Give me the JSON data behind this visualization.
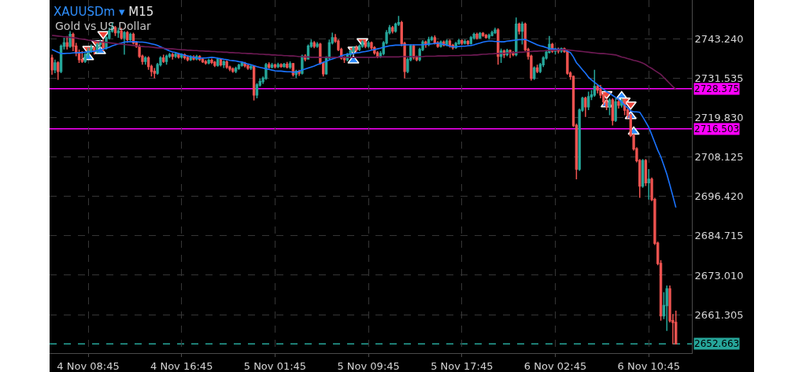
{
  "chart_data": {
    "type": "candlestick",
    "title": "XAUUSDm ▾ M15",
    "subtitle": "Gold vs US Dollar",
    "categories": [
      null,
      null,
      null,
      null,
      null,
      null,
      null,
      null,
      null,
      null,
      null,
      null,
      "4 Nov 08:45",
      null,
      null,
      null,
      null,
      null,
      null,
      null,
      null,
      null,
      null,
      null,
      null,
      null,
      null,
      null,
      null,
      null,
      null,
      null,
      null,
      null,
      null,
      null,
      null,
      null,
      null,
      null,
      null,
      null,
      null,
      "4 Nov 16:45",
      null,
      null,
      null,
      null,
      null,
      null,
      null,
      null,
      null,
      null,
      null,
      null,
      null,
      null,
      null,
      null,
      null,
      null,
      null,
      null,
      null,
      null,
      null,
      null,
      null,
      null,
      null,
      null,
      null,
      null,
      "5 Nov 01:45",
      null,
      null,
      null,
      null,
      null,
      null,
      null,
      null,
      null,
      null,
      null,
      null,
      null,
      null,
      null,
      null,
      null,
      null,
      null,
      null,
      null,
      null,
      null,
      null,
      null,
      null,
      null,
      null,
      null,
      null,
      "5 Nov 09:45",
      null,
      null,
      null,
      null,
      null,
      null,
      null,
      null,
      null,
      null,
      null,
      null,
      null,
      null,
      null,
      null,
      null,
      null,
      null,
      null,
      null,
      null,
      null,
      null,
      null,
      null,
      null,
      null,
      null,
      null,
      "5 Nov 17:45",
      null,
      null,
      null,
      null,
      null,
      null,
      null,
      null,
      null,
      null,
      null,
      null,
      null,
      null,
      null,
      null,
      null,
      null,
      null,
      null,
      null,
      null,
      null,
      null,
      null,
      null,
      null,
      null,
      null,
      null,
      "6 Nov 02:45",
      null,
      null,
      null,
      null,
      null,
      null,
      null,
      null,
      null,
      null,
      null,
      null,
      null,
      null,
      null,
      null,
      null,
      null,
      null,
      null,
      null,
      null,
      null,
      null,
      null,
      null,
      null,
      null,
      null,
      null,
      "6 Nov 10:45",
      null,
      null,
      null,
      null,
      null,
      null,
      null,
      null,
      null
    ],
    "ohlc": [
      [
        2737.5,
        2738.5,
        2732.5,
        2734.0
      ],
      [
        2734.0,
        2737.0,
        2733.0,
        2736.0
      ],
      [
        2736.0,
        2736.5,
        2731.0,
        2733.5
      ],
      [
        2733.5,
        2741.5,
        2733.0,
        2741.0
      ],
      [
        2741.0,
        2743.5,
        2740.0,
        2742.0
      ],
      [
        2742.0,
        2744.0,
        2740.0,
        2741.0
      ],
      [
        2741.0,
        2745.5,
        2740.5,
        2744.5
      ],
      [
        2744.5,
        2745.0,
        2739.5,
        2741.0
      ],
      [
        2741.0,
        2742.0,
        2738.0,
        2739.0
      ],
      [
        2739.0,
        2740.0,
        2736.0,
        2737.0
      ],
      [
        2737.0,
        2739.5,
        2736.0,
        2736.5
      ],
      [
        2736.5,
        2739.0,
        2736.0,
        2738.5
      ],
      [
        2738.5,
        2740.5,
        2737.5,
        2739.5
      ],
      [
        2739.5,
        2741.5,
        2739.0,
        2740.5
      ],
      [
        2740.5,
        2741.0,
        2738.5,
        2739.5
      ],
      [
        2739.5,
        2742.0,
        2739.0,
        2741.5
      ],
      [
        2741.5,
        2743.0,
        2740.5,
        2742.0
      ],
      [
        2742.0,
        2743.0,
        2739.5,
        2740.5
      ],
      [
        2740.5,
        2744.0,
        2740.0,
        2743.5
      ],
      [
        2743.5,
        2746.5,
        2743.0,
        2745.5
      ],
      [
        2745.5,
        2748.0,
        2745.0,
        2746.5
      ],
      [
        2746.5,
        2747.0,
        2744.0,
        2745.0
      ],
      [
        2745.0,
        2746.5,
        2743.5,
        2745.5
      ],
      [
        2745.5,
        2746.5,
        2743.0,
        2743.5
      ],
      [
        2743.5,
        2745.5,
        2738.5,
        2745.0
      ],
      [
        2745.0,
        2745.5,
        2742.0,
        2743.0
      ],
      [
        2743.0,
        2745.0,
        2742.5,
        2744.5
      ],
      [
        2744.5,
        2745.0,
        2741.5,
        2742.0
      ],
      [
        2742.0,
        2742.5,
        2740.5,
        2741.0
      ],
      [
        2741.0,
        2741.5,
        2737.5,
        2738.0
      ],
      [
        2738.0,
        2738.5,
        2735.5,
        2736.5
      ],
      [
        2736.5,
        2738.0,
        2735.5,
        2737.5
      ],
      [
        2737.5,
        2738.0,
        2734.0,
        2735.0
      ],
      [
        2735.0,
        2735.5,
        2732.0,
        2733.5
      ],
      [
        2733.5,
        2734.5,
        2731.5,
        2733.0
      ],
      [
        2733.0,
        2736.0,
        2732.5,
        2735.5
      ],
      [
        2735.5,
        2738.0,
        2735.0,
        2737.5
      ],
      [
        2737.5,
        2738.5,
        2736.0,
        2736.5
      ],
      [
        2736.5,
        2738.5,
        2735.5,
        2738.0
      ],
      [
        2738.0,
        2739.0,
        2737.5,
        2738.5
      ],
      [
        2738.5,
        2739.0,
        2737.0,
        2738.0
      ],
      [
        2738.0,
        2739.2,
        2737.5,
        2738.6
      ],
      [
        2738.6,
        2739.0,
        2737.3,
        2737.8
      ],
      [
        2737.8,
        2738.9,
        2737.3,
        2738.4
      ],
      [
        2738.4,
        2738.8,
        2737.0,
        2737.6
      ],
      [
        2737.6,
        2738.0,
        2736.5,
        2737.0
      ],
      [
        2737.0,
        2738.3,
        2736.6,
        2737.8
      ],
      [
        2737.8,
        2738.3,
        2736.8,
        2737.2
      ],
      [
        2737.2,
        2738.4,
        2736.8,
        2737.9
      ],
      [
        2737.9,
        2738.3,
        2736.6,
        2737.1
      ],
      [
        2737.1,
        2737.5,
        2736.0,
        2736.4
      ],
      [
        2736.4,
        2736.9,
        2735.5,
        2736.0
      ],
      [
        2736.0,
        2737.3,
        2735.6,
        2736.8
      ],
      [
        2736.8,
        2737.3,
        2735.7,
        2736.2
      ],
      [
        2736.2,
        2736.6,
        2734.8,
        2735.3
      ],
      [
        2735.3,
        2737.6,
        2734.9,
        2737.0
      ],
      [
        2737.0,
        2737.4,
        2735.0,
        2735.5
      ],
      [
        2735.5,
        2736.8,
        2734.5,
        2736.3
      ],
      [
        2736.3,
        2736.7,
        2734.3,
        2734.8
      ],
      [
        2734.8,
        2735.2,
        2733.6,
        2734.2
      ],
      [
        2734.2,
        2734.7,
        2733.1,
        2733.6
      ],
      [
        2733.6,
        2734.9,
        2733.0,
        2734.4
      ],
      [
        2734.4,
        2735.8,
        2734.0,
        2735.3
      ],
      [
        2735.3,
        2736.5,
        2734.9,
        2735.9
      ],
      [
        2735.9,
        2736.3,
        2734.7,
        2735.2
      ],
      [
        2735.2,
        2735.6,
        2734.0,
        2734.5
      ],
      [
        2734.5,
        2735.5,
        2733.9,
        2735.0
      ],
      [
        2735.0,
        2735.3,
        2724.9,
        2726.5
      ],
      [
        2726.5,
        2730.0,
        2725.5,
        2729.5
      ],
      [
        2729.5,
        2731.5,
        2729.0,
        2730.5
      ],
      [
        2730.5,
        2732.0,
        2729.8,
        2731.5
      ],
      [
        2731.5,
        2736.0,
        2731.0,
        2735.5
      ],
      [
        2735.5,
        2736.2,
        2734.3,
        2734.8
      ],
      [
        2734.8,
        2736.0,
        2734.4,
        2735.4
      ],
      [
        2735.4,
        2735.8,
        2734.4,
        2734.9
      ],
      [
        2734.9,
        2736.1,
        2734.5,
        2735.5
      ],
      [
        2735.5,
        2735.9,
        2734.6,
        2735.0
      ],
      [
        2735.0,
        2736.0,
        2734.6,
        2735.6
      ],
      [
        2735.6,
        2736.3,
        2734.4,
        2734.8
      ],
      [
        2734.8,
        2736.5,
        2734.2,
        2735.8
      ],
      [
        2735.8,
        2736.0,
        2732.0,
        2732.6
      ],
      [
        2732.6,
        2734.0,
        2731.6,
        2733.5
      ],
      [
        2733.5,
        2734.0,
        2732.2,
        2733.0
      ],
      [
        2733.0,
        2738.5,
        2732.6,
        2738.0
      ],
      [
        2738.0,
        2738.6,
        2736.5,
        2737.2
      ],
      [
        2737.2,
        2741.5,
        2737.0,
        2741.0
      ],
      [
        2741.0,
        2743.0,
        2740.5,
        2742.0
      ],
      [
        2742.0,
        2742.5,
        2740.4,
        2741.0
      ],
      [
        2741.0,
        2742.2,
        2740.5,
        2741.6
      ],
      [
        2741.6,
        2742.0,
        2735.5,
        2736.0
      ],
      [
        2736.0,
        2736.4,
        2732.0,
        2732.8
      ],
      [
        2732.8,
        2738.0,
        2732.5,
        2737.5
      ],
      [
        2737.5,
        2743.0,
        2737.0,
        2742.0
      ],
      [
        2742.0,
        2745.0,
        2741.5,
        2743.5
      ],
      [
        2743.5,
        2744.6,
        2742.0,
        2742.5
      ],
      [
        2742.5,
        2743.0,
        2739.5,
        2740.0
      ],
      [
        2740.0,
        2740.5,
        2737.0,
        2737.5
      ],
      [
        2737.5,
        2738.0,
        2736.0,
        2737.0
      ],
      [
        2737.0,
        2739.0,
        2736.5,
        2738.5
      ],
      [
        2738.5,
        2740.0,
        2737.5,
        2739.5
      ],
      [
        2739.5,
        2741.0,
        2739.0,
        2740.5
      ],
      [
        2740.5,
        2741.2,
        2739.2,
        2740.0
      ],
      [
        2740.0,
        2741.5,
        2739.5,
        2741.0
      ],
      [
        2741.0,
        2742.8,
        2740.5,
        2742.2
      ],
      [
        2742.2,
        2742.6,
        2740.4,
        2741.0
      ],
      [
        2741.0,
        2742.6,
        2740.5,
        2742.0
      ],
      [
        2742.0,
        2742.4,
        2740.0,
        2740.5
      ],
      [
        2740.5,
        2741.0,
        2738.5,
        2739.0
      ],
      [
        2739.0,
        2739.5,
        2737.4,
        2738.0
      ],
      [
        2738.0,
        2739.5,
        2737.5,
        2738.8
      ],
      [
        2738.8,
        2742.5,
        2738.3,
        2742.0
      ],
      [
        2742.0,
        2745.8,
        2741.5,
        2745.0
      ],
      [
        2745.0,
        2747.3,
        2744.5,
        2746.5
      ],
      [
        2746.5,
        2747.0,
        2744.8,
        2745.5
      ],
      [
        2745.5,
        2748.0,
        2745.0,
        2747.5
      ],
      [
        2747.5,
        2750.0,
        2747.0,
        2748.0
      ],
      [
        2748.0,
        2748.5,
        2741.0,
        2741.8
      ],
      [
        2741.8,
        2742.3,
        2731.5,
        2733.5
      ],
      [
        2733.5,
        2737.6,
        2733.0,
        2737.0
      ],
      [
        2737.0,
        2741.5,
        2736.5,
        2741.0
      ],
      [
        2741.0,
        2741.5,
        2737.0,
        2737.7
      ],
      [
        2737.7,
        2738.2,
        2736.5,
        2737.0
      ],
      [
        2737.0,
        2740.5,
        2736.5,
        2740.0
      ],
      [
        2740.0,
        2742.8,
        2739.5,
        2742.2
      ],
      [
        2742.2,
        2742.6,
        2740.5,
        2741.5
      ],
      [
        2741.5,
        2743.8,
        2741.0,
        2743.0
      ],
      [
        2743.0,
        2744.0,
        2742.5,
        2743.5
      ],
      [
        2743.5,
        2744.2,
        2741.5,
        2742.0
      ],
      [
        2742.0,
        2742.5,
        2740.5,
        2741.0
      ],
      [
        2741.0,
        2742.7,
        2740.6,
        2742.2
      ],
      [
        2742.2,
        2742.7,
        2740.9,
        2741.4
      ],
      [
        2741.4,
        2743.0,
        2741.0,
        2742.5
      ],
      [
        2742.5,
        2743.0,
        2740.6,
        2741.2
      ],
      [
        2741.2,
        2741.7,
        2740.0,
        2740.6
      ],
      [
        2740.6,
        2742.3,
        2740.2,
        2741.8
      ],
      [
        2741.8,
        2743.2,
        2741.4,
        2742.6
      ],
      [
        2742.6,
        2743.0,
        2741.4,
        2741.9
      ],
      [
        2741.9,
        2743.0,
        2741.5,
        2742.4
      ],
      [
        2742.4,
        2742.8,
        2741.3,
        2741.8
      ],
      [
        2741.8,
        2744.0,
        2741.5,
        2743.5
      ],
      [
        2743.5,
        2745.0,
        2743.0,
        2744.5
      ],
      [
        2744.5,
        2745.0,
        2743.0,
        2743.5
      ],
      [
        2743.5,
        2745.2,
        2743.2,
        2744.8
      ],
      [
        2744.8,
        2745.2,
        2743.8,
        2744.2
      ],
      [
        2744.2,
        2744.6,
        2743.2,
        2743.6
      ],
      [
        2743.6,
        2744.7,
        2743.0,
        2744.2
      ],
      [
        2744.2,
        2745.6,
        2743.9,
        2745.0
      ],
      [
        2745.0,
        2746.5,
        2744.6,
        2745.8
      ],
      [
        2745.8,
        2746.3,
        2735.5,
        2738.0
      ],
      [
        2738.0,
        2740.3,
        2736.0,
        2739.5
      ],
      [
        2739.5,
        2740.0,
        2737.5,
        2738.5
      ],
      [
        2738.5,
        2740.2,
        2738.0,
        2739.7
      ],
      [
        2739.7,
        2740.0,
        2737.5,
        2739.0
      ],
      [
        2739.0,
        2739.5,
        2738.0,
        2738.5
      ],
      [
        2738.5,
        2749.5,
        2738.0,
        2747.5
      ],
      [
        2747.5,
        2748.0,
        2744.5,
        2745.5
      ],
      [
        2745.5,
        2748.3,
        2741.5,
        2747.5
      ],
      [
        2747.5,
        2748.0,
        2739.5,
        2740.0
      ],
      [
        2740.0,
        2740.5,
        2737.0,
        2738.0
      ],
      [
        2738.0,
        2738.5,
        2730.8,
        2731.5
      ],
      [
        2731.5,
        2735.0,
        2731.0,
        2734.5
      ],
      [
        2734.5,
        2735.5,
        2733.0,
        2733.5
      ],
      [
        2733.5,
        2736.0,
        2733.0,
        2735.5
      ],
      [
        2735.5,
        2738.0,
        2734.8,
        2737.5
      ],
      [
        2737.5,
        2739.8,
        2737.0,
        2739.2
      ],
      [
        2739.2,
        2744.0,
        2738.8,
        2741.5
      ],
      [
        2741.5,
        2742.0,
        2739.0,
        2739.5
      ],
      [
        2739.5,
        2740.5,
        2738.5,
        2740.0
      ],
      [
        2740.0,
        2740.6,
        2738.8,
        2739.6
      ],
      [
        2739.6,
        2740.6,
        2739.0,
        2740.2
      ],
      [
        2740.2,
        2740.6,
        2739.0,
        2739.4
      ],
      [
        2739.4,
        2740.0,
        2732.5,
        2733.0
      ],
      [
        2733.0,
        2733.5,
        2731.0,
        2732.0
      ],
      [
        2732.0,
        2732.3,
        2717.0,
        2717.5
      ],
      [
        2717.5,
        2718.0,
        2701.5,
        2704.5
      ],
      [
        2704.5,
        2722.5,
        2704.0,
        2722.0
      ],
      [
        2722.0,
        2726.0,
        2721.5,
        2725.5
      ],
      [
        2725.5,
        2726.0,
        2720.0,
        2723.0
      ],
      [
        2723.0,
        2727.5,
        2722.0,
        2726.0
      ],
      [
        2726.0,
        2728.0,
        2725.0,
        2726.5
      ],
      [
        2726.5,
        2734.0,
        2726.0,
        2729.0
      ],
      [
        2729.0,
        2729.5,
        2727.0,
        2728.0
      ],
      [
        2728.0,
        2729.5,
        2725.5,
        2726.5
      ],
      [
        2726.5,
        2727.0,
        2723.5,
        2724.5
      ],
      [
        2724.5,
        2725.5,
        2722.0,
        2723.0
      ],
      [
        2723.0,
        2725.5,
        2720.5,
        2725.0
      ],
      [
        2725.0,
        2725.5,
        2717.5,
        2719.0
      ],
      [
        2719.0,
        2725.5,
        2718.5,
        2724.5
      ],
      [
        2724.5,
        2725.5,
        2722.5,
        2723.5
      ],
      [
        2723.5,
        2725.5,
        2722.8,
        2724.8
      ],
      [
        2724.8,
        2725.2,
        2720.5,
        2722.0
      ],
      [
        2722.0,
        2722.5,
        2719.5,
        2720.5
      ],
      [
        2720.5,
        2721.0,
        2714.0,
        2714.5
      ],
      [
        2714.5,
        2715.0,
        2710.0,
        2710.5
      ],
      [
        2710.5,
        2711.0,
        2706.5,
        2707.0
      ],
      [
        2707.0,
        2707.5,
        2696.0,
        2699.5
      ],
      [
        2699.5,
        2707.5,
        2699.0,
        2707.0
      ],
      [
        2707.0,
        2707.5,
        2699.5,
        2700.5
      ],
      [
        2700.5,
        2704.5,
        2695.5,
        2701.5
      ],
      [
        2701.5,
        2702.0,
        2695.0,
        2695.5
      ],
      [
        2695.5,
        2696.0,
        2682.0,
        2682.5
      ],
      [
        2682.5,
        2683.0,
        2676.0,
        2676.5
      ],
      [
        2676.5,
        2677.5,
        2659.5,
        2661.0
      ],
      [
        2661.0,
        2668.0,
        2660.0,
        2664.0
      ],
      [
        2664.0,
        2670.0,
        2656.5,
        2669.0
      ],
      [
        2669.0,
        2670.0,
        2659.0,
        2659.5
      ],
      [
        2659.5,
        2661.5,
        2652.5,
        2659.0
      ],
      [
        2659.0,
        2662.5,
        2652.663,
        2652.663
      ]
    ],
    "colors": [
      "#ef5350",
      "#26a69a",
      "#ef5350",
      "#26a69a",
      "#26a69a",
      "#ef5350",
      "#26a69a",
      "#ef5350",
      "#ef5350",
      "#ef5350",
      "#ef5350",
      "#26a69a",
      "#26a69a",
      "#26a69a",
      "#ef5350",
      "#26a69a",
      "#26a69a",
      "#ef5350",
      "#26a69a",
      "#26a69a",
      "#26a69a",
      "#ef5350",
      "#26a69a",
      "#ef5350",
      "#26a69a",
      "#ef5350",
      "#26a69a",
      "#ef5350",
      "#ef5350",
      "#ef5350",
      "#ef5350",
      "#26a69a",
      "#ef5350",
      "#ef5350",
      "#ef5350",
      "#26a69a",
      "#26a69a",
      "#ef5350",
      "#26a69a",
      "#26a69a",
      "#ef5350",
      "#26a69a",
      "#ef5350",
      "#26a69a",
      "#ef5350",
      "#ef5350",
      "#26a69a",
      "#ef5350",
      "#26a69a",
      "#ef5350",
      "#ef5350",
      "#ef5350",
      "#26a69a",
      "#ef5350",
      "#ef5350",
      "#26a69a",
      "#ef5350",
      "#26a69a",
      "#ef5350",
      "#ef5350",
      "#ef5350",
      "#26a69a",
      "#26a69a",
      "#26a69a",
      "#ef5350",
      "#ef5350",
      "#26a69a",
      "#ef5350",
      "#26a69a",
      "#26a69a",
      "#26a69a",
      "#26a69a",
      "#ef5350",
      "#26a69a",
      "#ef5350",
      "#26a69a",
      "#ef5350",
      "#26a69a",
      "#ef5350",
      "#26a69a",
      "#ef5350",
      "#26a69a",
      "#ef5350",
      "#26a69a",
      "#ef5350",
      "#26a69a",
      "#26a69a",
      "#ef5350",
      "#26a69a",
      "#ef5350",
      "#ef5350",
      "#26a69a",
      "#26a69a",
      "#26a69a",
      "#ef5350",
      "#ef5350",
      "#ef5350",
      "#ef5350",
      "#26a69a",
      "#26a69a",
      "#26a69a",
      "#ef5350",
      "#26a69a",
      "#26a69a",
      "#ef5350",
      "#26a69a",
      "#ef5350",
      "#ef5350",
      "#ef5350",
      "#26a69a",
      "#26a69a",
      "#26a69a",
      "#26a69a",
      "#ef5350",
      "#26a69a",
      "#26a69a",
      "#ef5350",
      "#ef5350",
      "#26a69a",
      "#26a69a",
      "#ef5350",
      "#ef5350",
      "#26a69a",
      "#26a69a",
      "#ef5350",
      "#26a69a",
      "#26a69a",
      "#ef5350",
      "#ef5350",
      "#26a69a",
      "#ef5350",
      "#26a69a",
      "#ef5350",
      "#ef5350",
      "#26a69a",
      "#26a69a",
      "#ef5350",
      "#26a69a",
      "#ef5350",
      "#26a69a",
      "#26a69a",
      "#ef5350",
      "#26a69a",
      "#ef5350",
      "#ef5350",
      "#26a69a",
      "#26a69a",
      "#26a69a",
      "#ef5350",
      "#26a69a",
      "#ef5350",
      "#26a69a",
      "#ef5350",
      "#ef5350",
      "#26a69a",
      "#ef5350",
      "#26a69a",
      "#ef5350",
      "#ef5350",
      "#ef5350",
      "#26a69a",
      "#ef5350",
      "#26a69a",
      "#26a69a",
      "#26a69a",
      "#26a69a",
      "#ef5350",
      "#26a69a",
      "#ef5350",
      "#26a69a",
      "#ef5350",
      "#ef5350",
      "#ef5350",
      "#ef5350",
      "#ef5350",
      "#26a69a",
      "#26a69a",
      "#ef5350",
      "#26a69a",
      "#26a69a",
      "#26a69a",
      "#ef5350",
      "#ef5350",
      "#ef5350",
      "#ef5350",
      "#26a69a",
      "#ef5350",
      "#26a69a",
      "#ef5350",
      "#26a69a",
      "#ef5350",
      "#ef5350",
      "#ef5350",
      "#ef5350",
      "#ef5350",
      "#ef5350",
      "#26a69a",
      "#ef5350",
      "#26a69a",
      "#ef5350",
      "#ef5350",
      "#ef5350",
      "#ef5350",
      "#26a69a",
      "#26a69a",
      "#ef5350",
      "#ef5350",
      "#ef5350"
    ],
    "series": [
      {
        "type": "line",
        "color": "#1a73ff",
        "values": [
          2740.0,
          2739.6,
          2739.2,
          2738.8,
          2738.8,
          2738.9,
          2738.9,
          2739.0,
          2739.0,
          2739.1,
          2739.1,
          2739.2,
          2739.3,
          2739.4,
          2739.5,
          2739.7,
          2739.9,
          2740.1,
          2740.4,
          2740.7,
          2741.1,
          2741.4,
          2741.7,
          2741.9,
          2742.2,
          2742.3,
          2742.3,
          2742.3,
          2742.3,
          2742.2,
          2742.2,
          2742.1,
          2741.9,
          2741.7,
          2741.5,
          2741.2,
          2740.8,
          2740.4,
          2740.0,
          2739.6,
          2739.3,
          2739.1,
          2738.8,
          2738.6,
          2738.3,
          2738.1,
          2737.9,
          2737.7,
          2737.5,
          2737.4,
          2737.5,
          2737.5,
          2737.6,
          2737.7,
          2737.6,
          2737.4,
          2737.3,
          2737.1,
          2737.0,
          2736.8,
          2736.7,
          2736.6,
          2736.4,
          2736.3,
          2736.0,
          2735.7,
          2735.5,
          2735.2,
          2734.9,
          2734.7,
          2734.5,
          2734.3,
          2734.1,
          2733.9,
          2733.7,
          2733.6,
          2733.6,
          2733.5,
          2733.4,
          2733.4,
          2733.3,
          2733.3,
          2733.6,
          2733.9,
          2734.2,
          2734.5,
          2734.8,
          2735.1,
          2735.5,
          2735.8,
          2736.2,
          2736.5,
          2736.9,
          2737.2,
          2737.5,
          2737.8,
          2738.1,
          2738.4,
          2738.6,
          2738.7,
          2738.8,
          2739.0,
          2739.1,
          2739.3,
          2739.4,
          2739.6,
          2739.8,
          2740.0,
          2740.2,
          2740.4,
          2740.7,
          2740.9,
          2741.1,
          2741.2,
          2741.3,
          2741.3,
          2741.3,
          2741.4,
          2741.4,
          2741.4,
          2741.4,
          2741.4,
          2741.4,
          2741.4,
          2741.5,
          2741.6,
          2741.7,
          2741.8,
          2741.9,
          2741.7,
          2741.5,
          2741.3,
          2741.0,
          2740.8,
          2740.8,
          2740.9,
          2741.0,
          2741.0,
          2741.1,
          2741.2,
          2741.4,
          2741.7,
          2741.9,
          2742.2,
          2742.4,
          2742.5,
          2742.5,
          2742.4,
          2742.4,
          2742.3,
          2742.3,
          2742.5,
          2742.6,
          2742.7,
          2742.8,
          2742.9,
          2742.9,
          2743.0,
          2742.6,
          2742.2,
          2741.8,
          2741.4,
          2741.1,
          2740.9,
          2740.6,
          2740.3,
          2740.2,
          2740.1,
          2740.1,
          2740.0,
          2740.0,
          2739.5,
          2739.1,
          2737.8,
          2736.1,
          2735.1,
          2734.0,
          2733.0,
          2731.8,
          2731.0,
          2730.3,
          2729.6,
          2728.9,
          2728.2,
          2727.5,
          2727.0,
          2726.4,
          2725.8,
          2725.2,
          2724.4,
          2723.5,
          2722.7,
          2721.8,
          2721.5,
          2721.5,
          2721.4,
          2720.0,
          2718.5,
          2716.9,
          2714.7,
          2712.4,
          2710.1,
          2708.2,
          2705.6,
          2703.0,
          2699.8,
          2696.5,
          2693.1
        ]
      },
      {
        "type": "line",
        "color": "#6e1a54",
        "values": [
          2744.2,
          2744.1,
          2744.0,
          2743.9,
          2743.8,
          2743.7,
          2743.6,
          2743.5,
          2743.4,
          2743.2,
          2743.1,
          2743.0,
          2742.8,
          2742.7,
          2742.6,
          2742.4,
          2742.3,
          2742.2,
          2742.1,
          2742.0,
          2741.9,
          2741.8,
          2741.7,
          2741.6,
          2741.5,
          2741.4,
          2741.3,
          2741.2,
          2741.1,
          2741.0,
          2740.9,
          2740.8,
          2740.8,
          2740.7,
          2740.6,
          2740.5,
          2740.5,
          2740.4,
          2740.3,
          2740.2,
          2740.2,
          2740.1,
          2740.0,
          2739.9,
          2739.9,
          2739.8,
          2739.8,
          2739.7,
          2739.7,
          2739.6,
          2739.6,
          2739.5,
          2739.5,
          2739.4,
          2739.4,
          2739.3,
          2739.3,
          2739.2,
          2739.2,
          2739.1,
          2739.1,
          2739.0,
          2739.0,
          2738.9,
          2738.9,
          2738.8,
          2738.8,
          2738.7,
          2738.7,
          2738.6,
          2738.6,
          2738.5,
          2738.5,
          2738.4,
          2738.4,
          2738.3,
          2738.3,
          2738.2,
          2738.2,
          2738.1,
          2738.1,
          2738.0,
          2737.9,
          2737.9,
          2737.8,
          2737.8,
          2737.7,
          2737.7,
          2737.7,
          2737.7,
          2737.7,
          2737.7,
          2737.7,
          2737.7,
          2737.7,
          2737.7,
          2737.7,
          2737.7,
          2737.7,
          2737.7,
          2737.7,
          2737.7,
          2737.7,
          2737.7,
          2737.7,
          2737.7,
          2737.7,
          2737.7,
          2737.8,
          2737.8,
          2737.8,
          2737.8,
          2737.8,
          2737.8,
          2737.8,
          2737.8,
          2737.9,
          2737.9,
          2737.9,
          2737.9,
          2737.9,
          2737.9,
          2737.9,
          2737.9,
          2738.0,
          2738.0,
          2738.0,
          2738.0,
          2738.1,
          2738.1,
          2738.1,
          2738.1,
          2738.2,
          2738.2,
          2738.2,
          2738.2,
          2738.3,
          2738.3,
          2738.3,
          2738.3,
          2738.4,
          2738.4,
          2738.5,
          2738.6,
          2738.6,
          2738.7,
          2738.7,
          2738.8,
          2738.8,
          2738.9,
          2738.9,
          2739.0,
          2739.0,
          2739.1,
          2739.1,
          2739.2,
          2739.2,
          2739.3,
          2739.4,
          2739.4,
          2739.5,
          2739.5,
          2739.6,
          2739.6,
          2739.7,
          2739.7,
          2739.8,
          2739.8,
          2739.9,
          2739.9,
          2740.0,
          2739.9,
          2739.8,
          2739.7,
          2739.6,
          2739.5,
          2739.4,
          2739.3,
          2739.2,
          2739.1,
          2739.0,
          2738.9,
          2738.8,
          2738.8,
          2738.7,
          2738.6,
          2738.5,
          2738.4,
          2738.1,
          2737.8,
          2737.6,
          2737.3,
          2737.1,
          2736.8,
          2736.6,
          2736.3,
          2736.0,
          2735.5,
          2734.9,
          2734.4,
          2733.8,
          2733.2,
          2732.6,
          2731.7,
          2730.8,
          2729.9,
          2729.0,
          2728.2
        ]
      },
      {
        "type": "scatter",
        "color": "#2d8cff",
        "marker": "triangle",
        "values": [
          null,
          null,
          null,
          null,
          null,
          null,
          null,
          null,
          null,
          null,
          null,
          null,
          2737.7,
          null,
          null,
          null,
          2739.5,
          null,
          null,
          null,
          null,
          null,
          null,
          null,
          null,
          null,
          null,
          null,
          null,
          null,
          null,
          null,
          null,
          null,
          null,
          null,
          null,
          null,
          null,
          null,
          null,
          null,
          null,
          null,
          null,
          null,
          null,
          null,
          null,
          null,
          null,
          null,
          null,
          null,
          null,
          null,
          null,
          null,
          null,
          null,
          null,
          null,
          null,
          null,
          null,
          null,
          null,
          null,
          null,
          null,
          null,
          null,
          null,
          null,
          null,
          null,
          null,
          null,
          null,
          null,
          null,
          null,
          null,
          null,
          null,
          null,
          null,
          null,
          null,
          null,
          null,
          null,
          null,
          null,
          null,
          null,
          null,
          null,
          null,
          null,
          2736.7,
          null,
          null,
          null,
          null,
          null,
          null,
          null,
          null,
          null,
          null,
          null,
          null,
          null,
          null,
          null,
          null,
          null,
          null,
          null,
          null,
          null,
          null,
          null,
          null,
          null,
          null,
          null,
          null,
          null,
          null,
          null,
          null,
          null,
          null,
          null,
          null,
          null,
          null,
          null,
          null,
          null,
          null,
          null,
          null,
          null,
          null,
          null,
          null,
          null,
          null,
          null,
          null,
          null,
          null,
          null,
          null,
          null,
          null,
          null,
          null,
          null,
          null,
          null,
          null,
          null,
          null,
          null,
          null,
          null,
          null,
          null,
          null,
          null,
          null,
          null,
          null,
          null,
          null,
          null,
          null,
          null,
          null,
          null,
          2723.7,
          null,
          null,
          null,
          null,
          2726.1,
          null,
          null,
          2720.2,
          2715.6,
          null,
          null,
          null,
          null,
          null,
          null,
          null,
          null,
          null,
          null,
          null,
          null,
          null,
          null
        ]
      },
      {
        "type": "scatter",
        "color": "#f0473c",
        "marker": "triangle-down",
        "values": [
          null,
          null,
          null,
          null,
          null,
          null,
          null,
          null,
          null,
          null,
          null,
          null,
          2740.2,
          null,
          null,
          2741.9,
          null,
          2744.6,
          null,
          null,
          null,
          null,
          null,
          null,
          null,
          null,
          null,
          null,
          null,
          null,
          null,
          null,
          null,
          null,
          null,
          null,
          null,
          null,
          null,
          null,
          null,
          null,
          null,
          null,
          null,
          null,
          null,
          null,
          null,
          null,
          null,
          null,
          null,
          null,
          null,
          null,
          null,
          null,
          null,
          null,
          null,
          null,
          null,
          null,
          null,
          null,
          null,
          null,
          null,
          null,
          null,
          null,
          null,
          null,
          null,
          null,
          null,
          null,
          null,
          null,
          null,
          null,
          null,
          null,
          null,
          null,
          null,
          null,
          null,
          null,
          null,
          null,
          null,
          null,
          null,
          null,
          null,
          null,
          null,
          null,
          2740.0,
          null,
          null,
          2742.5,
          null,
          null,
          null,
          null,
          null,
          null,
          null,
          null,
          null,
          null,
          null,
          null,
          null,
          null,
          null,
          null,
          null,
          null,
          null,
          null,
          null,
          null,
          null,
          null,
          null,
          null,
          null,
          null,
          null,
          null,
          null,
          null,
          null,
          null,
          null,
          null,
          null,
          null,
          null,
          null,
          null,
          null,
          null,
          null,
          null,
          null,
          null,
          null,
          null,
          null,
          null,
          null,
          null,
          null,
          null,
          null,
          null,
          null,
          null,
          null,
          null,
          null,
          null,
          null,
          null,
          null,
          null,
          null,
          null,
          null,
          null,
          null,
          null,
          null,
          null,
          null,
          null,
          null,
          null,
          null,
          2726.8,
          null,
          null,
          null,
          null,
          null,
          2724.9,
          null,
          2723.7,
          null,
          null,
          null,
          null,
          null,
          null,
          null,
          null,
          null,
          null,
          null,
          null,
          null,
          null,
          null
        ]
      }
    ],
    "ref_lines": [
      {
        "axis": "y",
        "value": 2728.375,
        "label": "2728.375",
        "color": "#ff00ff"
      },
      {
        "axis": "y",
        "value": 2716.503,
        "label": "2716.503",
        "color": "#ff00ff"
      },
      {
        "axis": "y",
        "value": 2652.663,
        "label": "2652.663",
        "color": "#26a69a",
        "line_style": "dashed"
      }
    ],
    "ylim": [
      2649.9,
      2754.7
    ],
    "yticks": [
      2661.305,
      {
        "value": 2673.01,
        "label": "2673.010"
      },
      2684.715,
      {
        "value": 2696.42,
        "label": "2696.420"
      },
      2708.125,
      {
        "value": 2719.83,
        "label": "2719.830"
      },
      2731.535,
      {
        "value": 2743.24,
        "label": "2743.240"
      }
    ],
    "grid": true
  }
}
